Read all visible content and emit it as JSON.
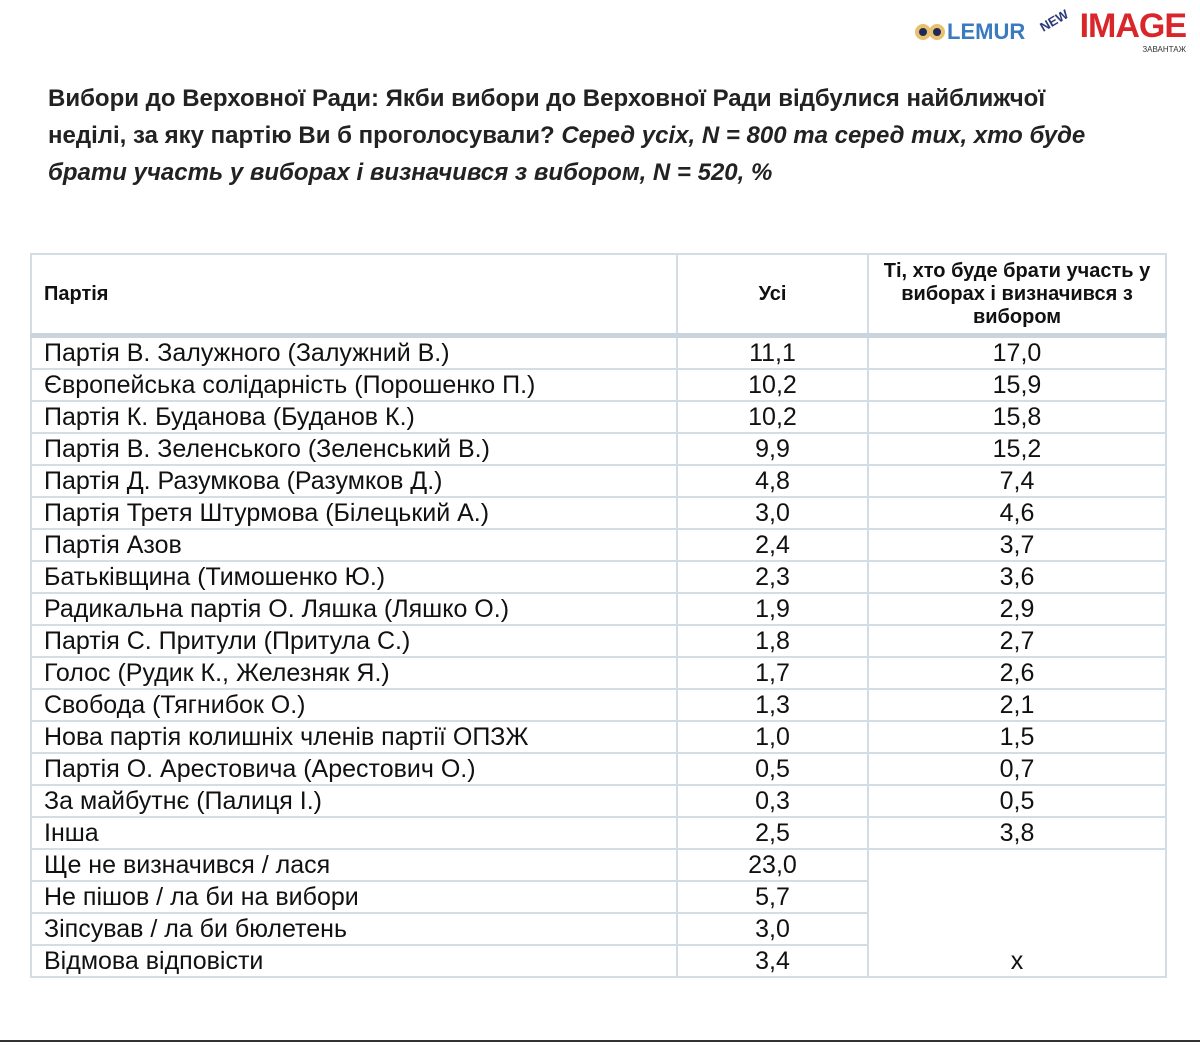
{
  "logos": {
    "lemur": "LEMUR",
    "image": "IMAGE",
    "new": "NEW",
    "image_sub": "ЗАВАНТАЖ"
  },
  "title": {
    "bold": "Вибори до Верховної Ради: Якби вибори до Верховної Ради відбулися найближчої неділі, за яку партію Ви б проголосували?",
    "italic": " Серед усіх, N = 800 та серед тих, хто буде брати участь у виборах і визначився з вибором, N = 520, %"
  },
  "table": {
    "headers": [
      "Партія",
      "Усі",
      "Ті, хто буде брати участь у виборах і визначився з вибором"
    ],
    "rows": [
      [
        "Партія В. Залужного (Залужний В.)",
        "11,1",
        "17,0"
      ],
      [
        "Європейська солідарність (Порошенко П.)",
        "10,2",
        "15,9"
      ],
      [
        "Партія К. Буданова (Буданов К.)",
        "10,2",
        "15,8"
      ],
      [
        "Партія В. Зеленського (Зеленський В.)",
        "9,9",
        "15,2"
      ],
      [
        "Партія Д. Разумкова (Разумков Д.)",
        "4,8",
        "7,4"
      ],
      [
        "Партія Третя Штурмова (Білецький А.)",
        "3,0",
        "4,6"
      ],
      [
        "Партія Азов",
        "2,4",
        "3,7"
      ],
      [
        "Батьківщина (Тимошенко Ю.)",
        "2,3",
        "3,6"
      ],
      [
        "Радикальна партія О. Ляшка (Ляшко О.)",
        "1,9",
        "2,9"
      ],
      [
        "Партія С. Притули (Притула С.)",
        "1,8",
        "2,7"
      ],
      [
        "Голос (Рудик К., Железняк Я.)",
        "1,7",
        "2,6"
      ],
      [
        "Свобода (Тягнибок О.)",
        "1,3",
        "2,1"
      ],
      [
        "Нова партія колишніх членів партії ОПЗЖ",
        "1,0",
        "1,5"
      ],
      [
        "Партія О. Арестовича (Арестович О.)",
        "0,5",
        "0,7"
      ],
      [
        "За майбутнє (Палиця І.)",
        "0,3",
        "0,5"
      ],
      [
        "Інша",
        "2,5",
        "3,8"
      ],
      [
        "Ще не визначився / лася",
        "23,0"
      ],
      [
        "Не пішов / ла би на вибори",
        "5,7"
      ],
      [
        "Зіпсував / ла би бюлетень",
        "3,0"
      ],
      [
        "Відмова відповісти",
        "3,4"
      ]
    ],
    "merged_value": "x"
  }
}
